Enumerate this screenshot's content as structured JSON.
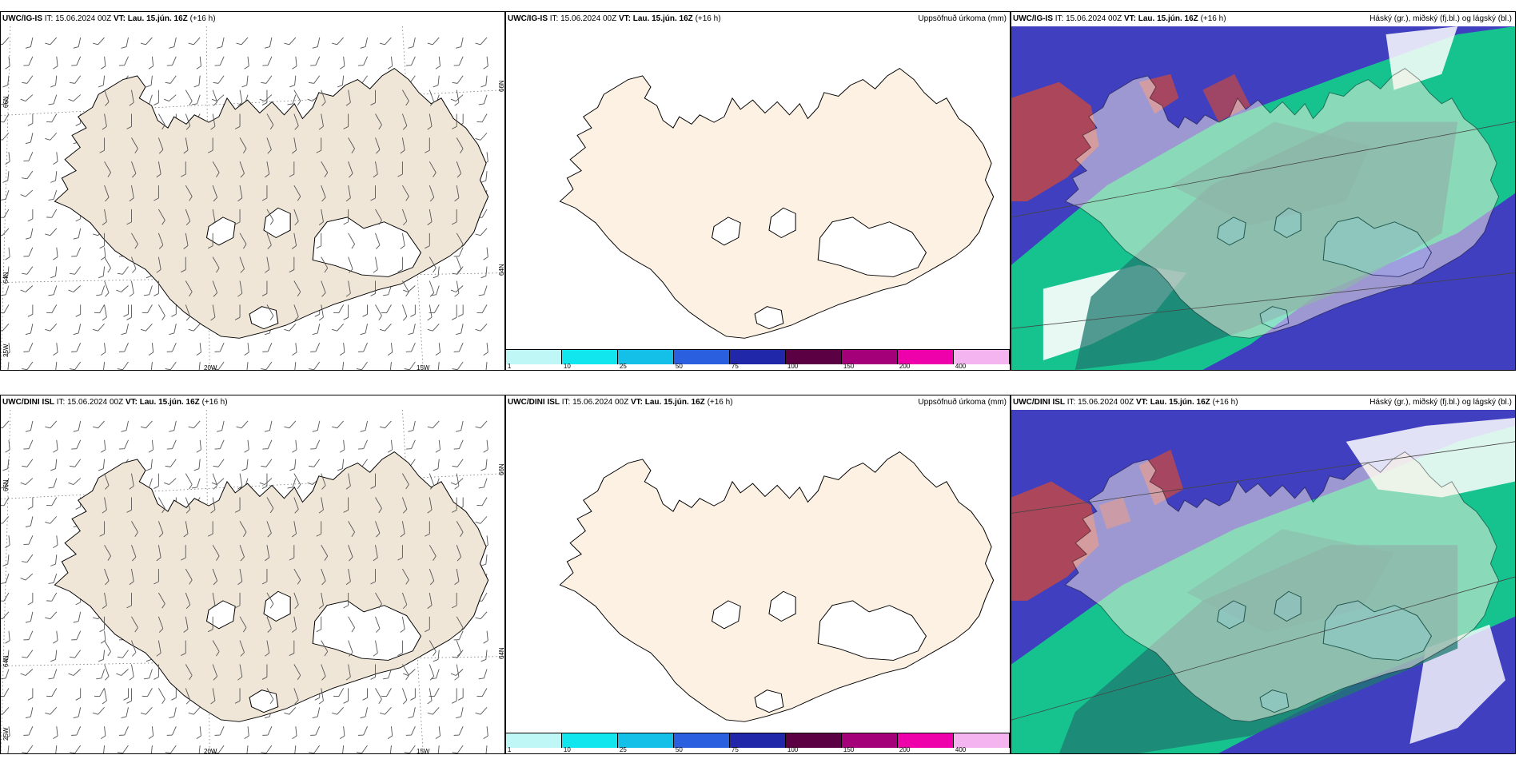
{
  "rows": [
    {
      "model": "UWC/IG-IS",
      "it_label": "IT: 15.06.2024 00Z",
      "vt_label": "VT: Lau. 15.jún. 16Z",
      "lead": "(+16 h)",
      "lon_labels": [
        "20W",
        "15W"
      ],
      "lat_labels": [
        "66N",
        "64N",
        "25W",
        "66N",
        "64N"
      ]
    },
    {
      "model": "UWC/DINI ISL",
      "it_label": "IT: 15.06.2024 00Z",
      "vt_label": "VT: Lau. 15.jún. 16Z",
      "lead": "(+16 h)",
      "lon_labels": [
        "20W",
        "15W"
      ],
      "lat_labels": [
        "66N",
        "64N",
        "25W",
        "66N",
        "64N"
      ]
    }
  ],
  "precip_title": "Uppsöfnuð úrkoma (mm)",
  "cloud_title": "Háský (gr.), miðský (fj.bl.) og lágský (bl.)",
  "colorbar": {
    "labels": [
      "1",
      "10",
      "25",
      "50",
      "75",
      "100",
      "150",
      "200",
      "400"
    ],
    "colors": [
      "#bff7f7",
      "#11e6ee",
      "#14bfe8",
      "#2a5fe0",
      "#2027a8",
      "#5c0044",
      "#a3007a",
      "#ee00aa",
      "#f4b4f0"
    ]
  },
  "colors": {
    "land_wind": "#f0e6d8",
    "land_precip": "#fdf1e4",
    "cloud_high": "#1f7a70",
    "cloud_mid": "#3f3fc0",
    "cloud_low": "#12d28a",
    "cloud_red": "#c04848"
  }
}
